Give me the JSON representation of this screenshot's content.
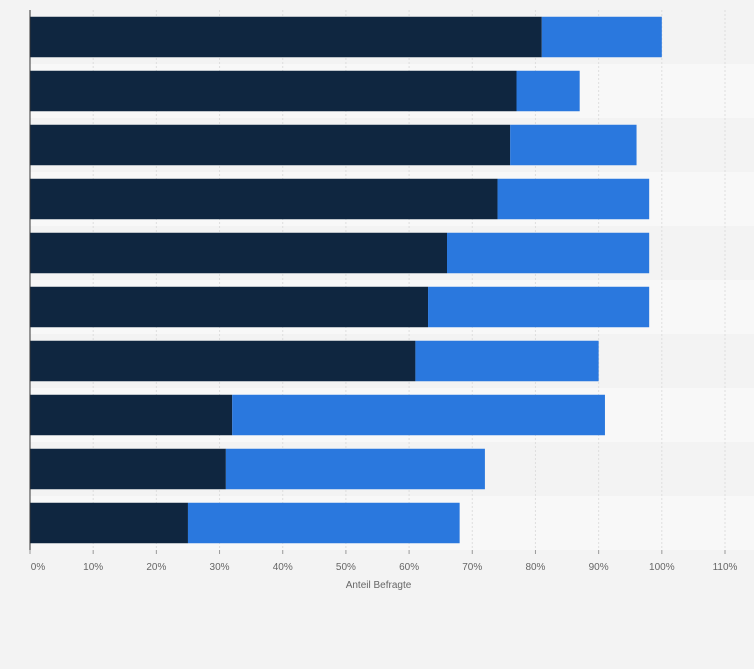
{
  "chart_data": {
    "type": "bar",
    "orientation": "horizontal",
    "stacked": true,
    "categories": [
      "",
      "",
      "",
      "",
      "",
      "",
      "",
      "",
      "",
      ""
    ],
    "series": [
      {
        "values": [
          81,
          77,
          76,
          74,
          66,
          63,
          61,
          32,
          31,
          25
        ],
        "color": "#0f2640"
      },
      {
        "values": [
          19,
          10,
          20,
          24,
          32,
          35,
          29,
          59,
          41,
          43
        ],
        "color": "#2a78de"
      }
    ],
    "xlabel": "Anteil Befragte",
    "xlim": [
      0,
      110
    ],
    "xticks": [
      0,
      10,
      20,
      30,
      40,
      50,
      60,
      70,
      80,
      90,
      100,
      110
    ],
    "tick_labels": [
      "0%",
      "10%",
      "20%",
      "30%",
      "40%",
      "50%",
      "60%",
      "70%",
      "80%",
      "90%",
      "100%",
      "110%"
    ],
    "grid": true,
    "legend": "none",
    "colors": {
      "background": "#f3f3f3",
      "band_light": "#f8f8f8",
      "gridline": "#dedede",
      "axis": "#333333"
    }
  }
}
